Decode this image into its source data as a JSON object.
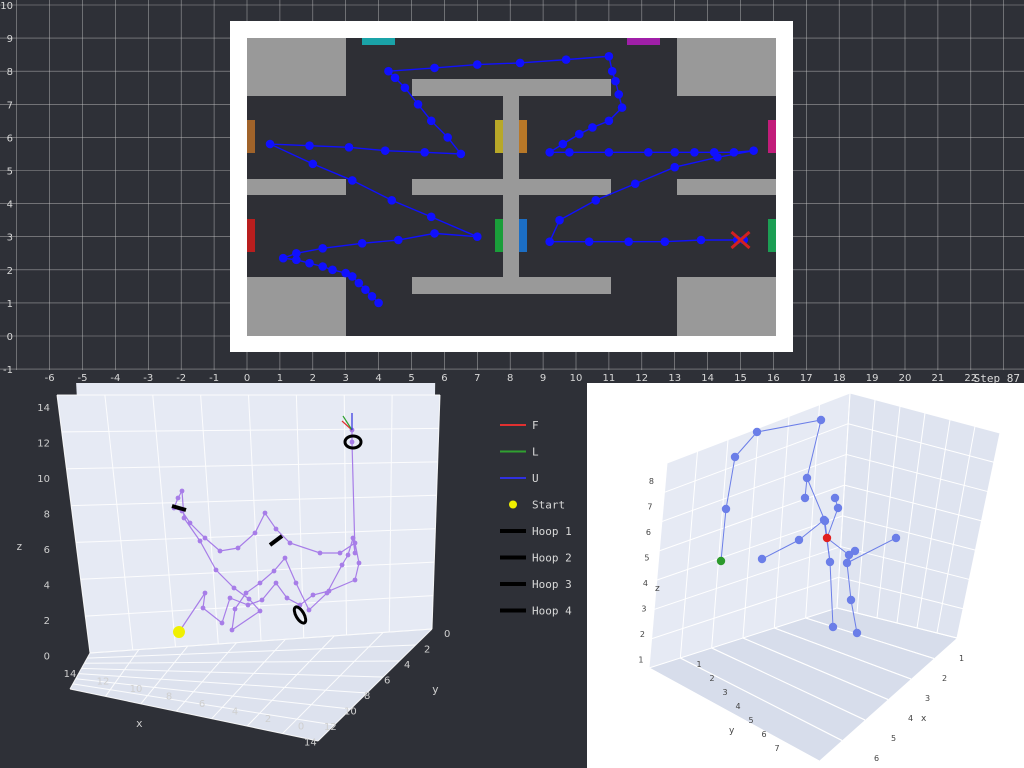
{
  "top_plot": {
    "step_label": "Step 87",
    "x_ticks": [
      "-6",
      "-5",
      "-4",
      "-3",
      "-2",
      "-1",
      "0",
      "1",
      "2",
      "3",
      "4",
      "5",
      "6",
      "7",
      "8",
      "9",
      "10",
      "11",
      "12",
      "13",
      "14",
      "15",
      "16",
      "17",
      "18",
      "19",
      "20",
      "21",
      "22"
    ],
    "y_ticks": [
      "10",
      "9",
      "8",
      "7",
      "6",
      "5",
      "4",
      "3",
      "2",
      "1",
      "0",
      "-1"
    ],
    "chart_data": {
      "type": "line",
      "xlim": [
        -7,
        23
      ],
      "ylim": [
        -1,
        10
      ],
      "grid": true,
      "series": [
        {
          "color": "#1010ff",
          "x": [
            4.0,
            3.8,
            3.6,
            3.4,
            3.2,
            3.0,
            2.6,
            2.3,
            1.9,
            1.5,
            1.1,
            1.5,
            2.3,
            3.5,
            4.6,
            5.7,
            7.0,
            5.6,
            4.4,
            3.2,
            2.0,
            0.7,
            1.9,
            3.1,
            4.2,
            5.4,
            6.5,
            6.1,
            5.6,
            5.2,
            4.8,
            4.5,
            4.3,
            5.7,
            7.0,
            8.3,
            9.7,
            11.0,
            11.1,
            11.2,
            11.3,
            11.4,
            11.0,
            10.5,
            10.1,
            9.6,
            9.2,
            9.8,
            11.0,
            12.2,
            13.0,
            13.6,
            14.2,
            14.8,
            15.4,
            14.3,
            13.0,
            11.8,
            10.6,
            9.5,
            9.2,
            10.4,
            11.6,
            12.7,
            13.8,
            14.9,
            15.1
          ],
          "y": [
            1.0,
            1.2,
            1.4,
            1.6,
            1.8,
            1.9,
            2.0,
            2.1,
            2.2,
            2.3,
            2.35,
            2.5,
            2.65,
            2.8,
            2.9,
            3.1,
            3.0,
            3.6,
            4.1,
            4.7,
            5.2,
            5.8,
            5.75,
            5.7,
            5.6,
            5.55,
            5.5,
            6.0,
            6.5,
            7.0,
            7.5,
            7.8,
            8.0,
            8.1,
            8.2,
            8.25,
            8.35,
            8.45,
            8.0,
            7.7,
            7.3,
            6.9,
            6.5,
            6.3,
            6.1,
            5.8,
            5.55,
            5.55,
            5.55,
            5.55,
            5.55,
            5.55,
            5.55,
            5.55,
            5.6,
            5.4,
            5.1,
            4.6,
            4.1,
            3.5,
            2.85,
            2.85,
            2.85,
            2.85,
            2.9,
            2.9,
            2.9
          ]
        }
      ],
      "goal": {
        "x": 15.0,
        "y": 2.9,
        "color": "#d42020"
      }
    },
    "map_colors": {
      "room_border": "#ffffff",
      "floor": "#2e2f35",
      "obstacle": "#999999",
      "door_teal": "#1aa3a8",
      "door_purple": "#a01fa8",
      "door_brown_left": "#a0632a",
      "door_red_left": "#b81e1e",
      "door_pink_right": "#c21d7a",
      "door_green_right": "#1c9e54",
      "center_yellow": "#b8a828",
      "center_brown": "#b87828",
      "center_green": "#1a9e3a",
      "center_blue": "#1c6ec4"
    }
  },
  "plot3d_left": {
    "axis_labels": {
      "z": "z",
      "x": "x",
      "y": "y"
    },
    "z_ticks": [
      "14",
      "12",
      "10",
      "8",
      "6",
      "4",
      "2",
      "0"
    ],
    "x_ticks": [
      "14",
      "12",
      "10",
      "8",
      "6",
      "4",
      "2",
      "0"
    ],
    "y_ticks": [
      "0",
      "2",
      "4",
      "6",
      "8",
      "10",
      "12",
      "14"
    ],
    "legend": [
      {
        "label": "F",
        "color": "#e03030",
        "kind": "line"
      },
      {
        "label": "L",
        "color": "#30a030",
        "kind": "line"
      },
      {
        "label": "U",
        "color": "#3030e0",
        "kind": "line"
      },
      {
        "label": "Start",
        "color": "#f0f000",
        "kind": "dot"
      },
      {
        "label": "Hoop 1",
        "color": "#000000",
        "kind": "thick"
      },
      {
        "label": "Hoop 2",
        "color": "#000000",
        "kind": "thick"
      },
      {
        "label": "Hoop 3",
        "color": "#000000",
        "kind": "thick"
      },
      {
        "label": "Hoop 4",
        "color": "#000000",
        "kind": "thick"
      }
    ],
    "path_color": "#a77de8"
  },
  "plot3d_right": {
    "axis_labels": {
      "z": "z",
      "x": "x",
      "y": "y"
    },
    "z_ticks": [
      "8",
      "7",
      "6",
      "5",
      "4",
      "3",
      "2",
      "1"
    ],
    "x_ticks": [
      "1",
      "2",
      "3",
      "4",
      "5",
      "6"
    ],
    "y_ticks": [
      "1",
      "2",
      "3",
      "4",
      "5",
      "6",
      "7"
    ],
    "node_color": "#6b7ee8",
    "start_color": "#2c9a2c",
    "end_color": "#e02020"
  }
}
